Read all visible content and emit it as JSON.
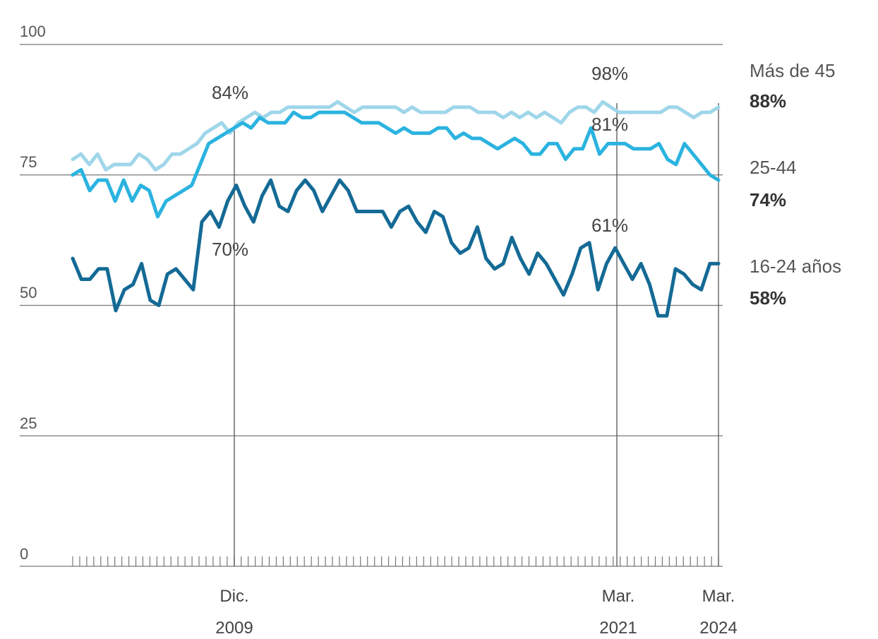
{
  "chart_data": {
    "type": "line",
    "ylim": [
      0,
      100
    ],
    "y_ticks": [
      "0",
      "25",
      "50",
      "75",
      "100"
    ],
    "grid": true,
    "x_labels": [
      {
        "line1": "Dic.",
        "line2": "2009"
      },
      {
        "line1": "Mar.",
        "line2": "2021"
      },
      {
        "line1": "Mar.",
        "line2": "2024"
      }
    ],
    "series": [
      {
        "name": "Más de 45",
        "end_label": "88%",
        "color": "#9fd6ea",
        "values": [
          78,
          79,
          77,
          79,
          76,
          77,
          77,
          77,
          79,
          78,
          76,
          77,
          79,
          79,
          80,
          81,
          83,
          84,
          85,
          83,
          85,
          86,
          87,
          86,
          87,
          87,
          88,
          88,
          88,
          88,
          88,
          88,
          89,
          88,
          87,
          88,
          88,
          88,
          88,
          88,
          87,
          88,
          87,
          87,
          87,
          87,
          88,
          88,
          88,
          87,
          87,
          87,
          86,
          87,
          86,
          87,
          86,
          87,
          86,
          85,
          87,
          88,
          88,
          87,
          89,
          88,
          87,
          87,
          87,
          87,
          87,
          87,
          88,
          88,
          87,
          86,
          87,
          87,
          88
        ]
      },
      {
        "name": "25-44",
        "end_label": "74%",
        "color": "#2bb3e0",
        "values": [
          75,
          76,
          72,
          74,
          74,
          70,
          74,
          70,
          73,
          72,
          67,
          70,
          71,
          72,
          73,
          77,
          81,
          82,
          83,
          84,
          85,
          84,
          86,
          85,
          85,
          85,
          87,
          86,
          86,
          87,
          87,
          87,
          87,
          86,
          85,
          85,
          85,
          84,
          83,
          84,
          83,
          83,
          83,
          84,
          84,
          82,
          83,
          82,
          82,
          81,
          80,
          81,
          82,
          81,
          79,
          79,
          81,
          81,
          78,
          80,
          80,
          84,
          79,
          81,
          81,
          81,
          80,
          80,
          80,
          81,
          78,
          77,
          81,
          79,
          77,
          75,
          74
        ]
      },
      {
        "name": "16-24 años",
        "end_label": "58%",
        "color": "#146a95",
        "values": [
          59,
          55,
          55,
          57,
          57,
          49,
          53,
          54,
          58,
          51,
          50,
          56,
          57,
          55,
          53,
          66,
          68,
          65,
          70,
          73,
          69,
          66,
          71,
          74,
          69,
          68,
          72,
          74,
          72,
          68,
          71,
          74,
          72,
          68,
          68,
          68,
          68,
          65,
          68,
          69,
          66,
          64,
          68,
          67,
          62,
          60,
          61,
          65,
          59,
          57,
          58,
          63,
          59,
          56,
          60,
          58,
          55,
          52,
          56,
          61,
          62,
          53,
          58,
          61,
          58,
          55,
          58,
          54,
          48,
          48,
          57,
          56,
          54,
          53,
          58,
          58
        ]
      }
    ],
    "annotations": [
      {
        "text": "84%"
      },
      {
        "text": "70%"
      },
      {
        "text": "98%"
      },
      {
        "text": "81%"
      },
      {
        "text": "61%"
      }
    ]
  }
}
